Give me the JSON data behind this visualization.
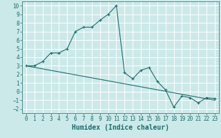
{
  "title": "",
  "xlabel": "Humidex (Indice chaleur)",
  "ylabel": "",
  "xlim": [
    -0.5,
    23.5
  ],
  "ylim": [
    -2.5,
    10.5
  ],
  "xticks": [
    0,
    1,
    2,
    3,
    4,
    5,
    6,
    7,
    8,
    9,
    10,
    11,
    12,
    13,
    14,
    15,
    16,
    17,
    18,
    19,
    20,
    21,
    22,
    23
  ],
  "yticks": [
    -2,
    -1,
    0,
    1,
    2,
    3,
    4,
    5,
    6,
    7,
    8,
    9,
    10
  ],
  "background_color": "#cce9e9",
  "grid_color": "#ffffff",
  "line_color": "#1a6b6b",
  "line1_x": [
    0,
    1,
    2,
    3,
    4,
    5,
    6,
    7,
    8,
    9,
    10,
    11,
    12,
    13,
    14,
    15,
    16,
    17,
    18,
    19,
    20,
    21,
    22,
    23
  ],
  "line1_y": [
    3.0,
    3.0,
    3.5,
    4.5,
    4.5,
    5.0,
    7.0,
    7.5,
    7.5,
    8.3,
    9.0,
    10.0,
    2.2,
    1.5,
    2.5,
    2.8,
    1.2,
    0.2,
    -1.8,
    -0.5,
    -0.7,
    -1.3,
    -0.7,
    -0.8
  ],
  "line2_x": [
    0,
    23
  ],
  "line2_y": [
    3.0,
    -1.0
  ],
  "tick_fontsize": 5.5,
  "xlabel_fontsize": 7
}
